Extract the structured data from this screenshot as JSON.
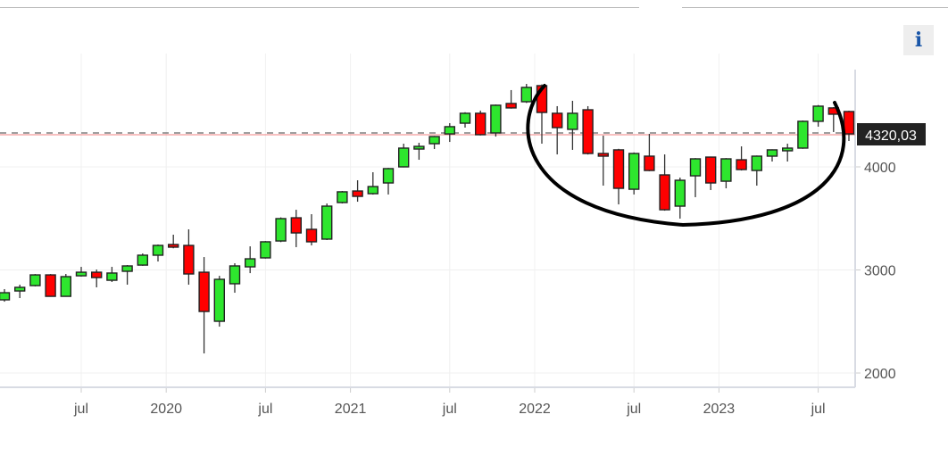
{
  "info_button": {
    "label": "i"
  },
  "chart_data": {
    "type": "candlestick",
    "title": "",
    "xlabel": "",
    "ylabel": "",
    "interval": "monthly",
    "ylim": [
      1860,
      4900
    ],
    "yticks": [
      2000,
      3000,
      4000
    ],
    "ytick_labels": [
      "2000",
      "3000",
      "4000"
    ],
    "xticks": [
      {
        "date": "2019-07",
        "label": "jul"
      },
      {
        "date": "2020-01",
        "label": "2020"
      },
      {
        "date": "2020-07",
        "label": "jul"
      },
      {
        "date": "2021-01",
        "label": "2021"
      },
      {
        "date": "2021-07",
        "label": "jul"
      },
      {
        "date": "2022-01",
        "label": "2022"
      },
      {
        "date": "2022-07",
        "label": "jul"
      },
      {
        "date": "2023-01",
        "label": "2023"
      },
      {
        "date": "2023-07",
        "label": "jul"
      }
    ],
    "grid": true,
    "up_color": "#2ee62e",
    "down_color": "#ff0000",
    "last_price": 4320.03,
    "last_price_label": "4320,03",
    "last_price_line_color": "#f08080",
    "annotation": "hand-drawn black arc around 2022-2023 base",
    "candles": [
      {
        "date": "2019-02",
        "o": 2710,
        "h": 2814,
        "l": 2692,
        "c": 2779
      },
      {
        "date": "2019-03",
        "o": 2796,
        "h": 2857,
        "l": 2727,
        "c": 2831
      },
      {
        "date": "2019-04",
        "o": 2848,
        "h": 2960,
        "l": 2840,
        "c": 2952
      },
      {
        "date": "2019-05",
        "o": 2952,
        "h": 2960,
        "l": 2740,
        "c": 2744
      },
      {
        "date": "2019-06",
        "o": 2744,
        "h": 2961,
        "l": 2740,
        "c": 2935
      },
      {
        "date": "2019-07",
        "o": 2943,
        "h": 3030,
        "l": 2935,
        "c": 2978
      },
      {
        "date": "2019-08",
        "o": 2978,
        "h": 3004,
        "l": 2831,
        "c": 2926
      },
      {
        "date": "2019-09",
        "o": 2900,
        "h": 3030,
        "l": 2883,
        "c": 2970
      },
      {
        "date": "2019-10",
        "o": 2987,
        "h": 3047,
        "l": 2857,
        "c": 3039
      },
      {
        "date": "2019-11",
        "o": 3047,
        "h": 3160,
        "l": 3040,
        "c": 3143
      },
      {
        "date": "2019-12",
        "o": 3143,
        "h": 3247,
        "l": 3082,
        "c": 3238
      },
      {
        "date": "2020-01",
        "o": 3247,
        "h": 3342,
        "l": 3210,
        "c": 3221
      },
      {
        "date": "2020-02",
        "o": 3238,
        "h": 3394,
        "l": 2857,
        "c": 2961
      },
      {
        "date": "2020-03",
        "o": 2978,
        "h": 3125,
        "l": 2190,
        "c": 2597
      },
      {
        "date": "2020-04",
        "o": 2502,
        "h": 2943,
        "l": 2450,
        "c": 2909
      },
      {
        "date": "2020-05",
        "o": 2866,
        "h": 3065,
        "l": 2779,
        "c": 3039
      },
      {
        "date": "2020-06",
        "o": 3030,
        "h": 3229,
        "l": 2969,
        "c": 3108
      },
      {
        "date": "2020-07",
        "o": 3117,
        "h": 3280,
        "l": 3110,
        "c": 3273
      },
      {
        "date": "2020-08",
        "o": 3281,
        "h": 3510,
        "l": 3270,
        "c": 3498
      },
      {
        "date": "2020-09",
        "o": 3506,
        "h": 3584,
        "l": 3221,
        "c": 3359
      },
      {
        "date": "2020-10",
        "o": 3394,
        "h": 3541,
        "l": 3238,
        "c": 3273
      },
      {
        "date": "2020-11",
        "o": 3299,
        "h": 3645,
        "l": 3290,
        "c": 3619
      },
      {
        "date": "2020-12",
        "o": 3654,
        "h": 3766,
        "l": 3645,
        "c": 3758
      },
      {
        "date": "2021-01",
        "o": 3766,
        "h": 3870,
        "l": 3662,
        "c": 3714
      },
      {
        "date": "2021-02",
        "o": 3740,
        "h": 3948,
        "l": 3731,
        "c": 3809
      },
      {
        "date": "2021-03",
        "o": 3844,
        "h": 3990,
        "l": 3732,
        "c": 3983
      },
      {
        "date": "2021-04",
        "o": 4000,
        "h": 4225,
        "l": 3995,
        "c": 4182
      },
      {
        "date": "2021-05",
        "o": 4173,
        "h": 4234,
        "l": 4069,
        "c": 4199
      },
      {
        "date": "2021-06",
        "o": 4225,
        "h": 4300,
        "l": 4173,
        "c": 4294
      },
      {
        "date": "2021-07",
        "o": 4320,
        "h": 4424,
        "l": 4242,
        "c": 4390
      },
      {
        "date": "2021-08",
        "o": 4424,
        "h": 4530,
        "l": 4381,
        "c": 4520
      },
      {
        "date": "2021-09",
        "o": 4520,
        "h": 4546,
        "l": 4305,
        "c": 4312
      },
      {
        "date": "2021-10",
        "o": 4329,
        "h": 4605,
        "l": 4294,
        "c": 4598
      },
      {
        "date": "2021-11",
        "o": 4615,
        "h": 4745,
        "l": 4565,
        "c": 4572
      },
      {
        "date": "2021-12",
        "o": 4632,
        "h": 4805,
        "l": 4620,
        "c": 4771
      },
      {
        "date": "2022-01",
        "o": 4788,
        "h": 4800,
        "l": 4225,
        "c": 4528
      },
      {
        "date": "2022-02",
        "o": 4520,
        "h": 4589,
        "l": 4121,
        "c": 4381
      },
      {
        "date": "2022-03",
        "o": 4364,
        "h": 4641,
        "l": 4165,
        "c": 4520
      },
      {
        "date": "2022-04",
        "o": 4554,
        "h": 4589,
        "l": 4120,
        "c": 4130
      },
      {
        "date": "2022-05",
        "o": 4130,
        "h": 4303,
        "l": 3818,
        "c": 4104
      },
      {
        "date": "2022-06",
        "o": 4165,
        "h": 4175,
        "l": 3636,
        "c": 3792
      },
      {
        "date": "2022-07",
        "o": 3783,
        "h": 4140,
        "l": 3732,
        "c": 4130
      },
      {
        "date": "2022-08",
        "o": 4104,
        "h": 4320,
        "l": 3958,
        "c": 3965
      },
      {
        "date": "2022-09",
        "o": 3922,
        "h": 4121,
        "l": 3575,
        "c": 3584
      },
      {
        "date": "2022-10",
        "o": 3619,
        "h": 3896,
        "l": 3498,
        "c": 3870
      },
      {
        "date": "2022-11",
        "o": 3913,
        "h": 4085,
        "l": 3706,
        "c": 4078
      },
      {
        "date": "2022-12",
        "o": 4095,
        "h": 4100,
        "l": 3775,
        "c": 3844
      },
      {
        "date": "2023-01",
        "o": 3861,
        "h": 4085,
        "l": 3792,
        "c": 4078
      },
      {
        "date": "2023-02",
        "o": 4069,
        "h": 4199,
        "l": 3965,
        "c": 3974
      },
      {
        "date": "2023-03",
        "o": 3965,
        "h": 4110,
        "l": 3818,
        "c": 4104
      },
      {
        "date": "2023-04",
        "o": 4104,
        "h": 4170,
        "l": 4052,
        "c": 4165
      },
      {
        "date": "2023-05",
        "o": 4156,
        "h": 4225,
        "l": 4052,
        "c": 4182
      },
      {
        "date": "2023-06",
        "o": 4182,
        "h": 4450,
        "l": 4175,
        "c": 4442
      },
      {
        "date": "2023-07",
        "o": 4442,
        "h": 4600,
        "l": 4390,
        "c": 4589
      },
      {
        "date": "2023-08",
        "o": 4572,
        "h": 4580,
        "l": 4338,
        "c": 4511
      },
      {
        "date": "2023-09",
        "o": 4537,
        "h": 4545,
        "l": 4251,
        "c": 4320.03
      }
    ]
  }
}
